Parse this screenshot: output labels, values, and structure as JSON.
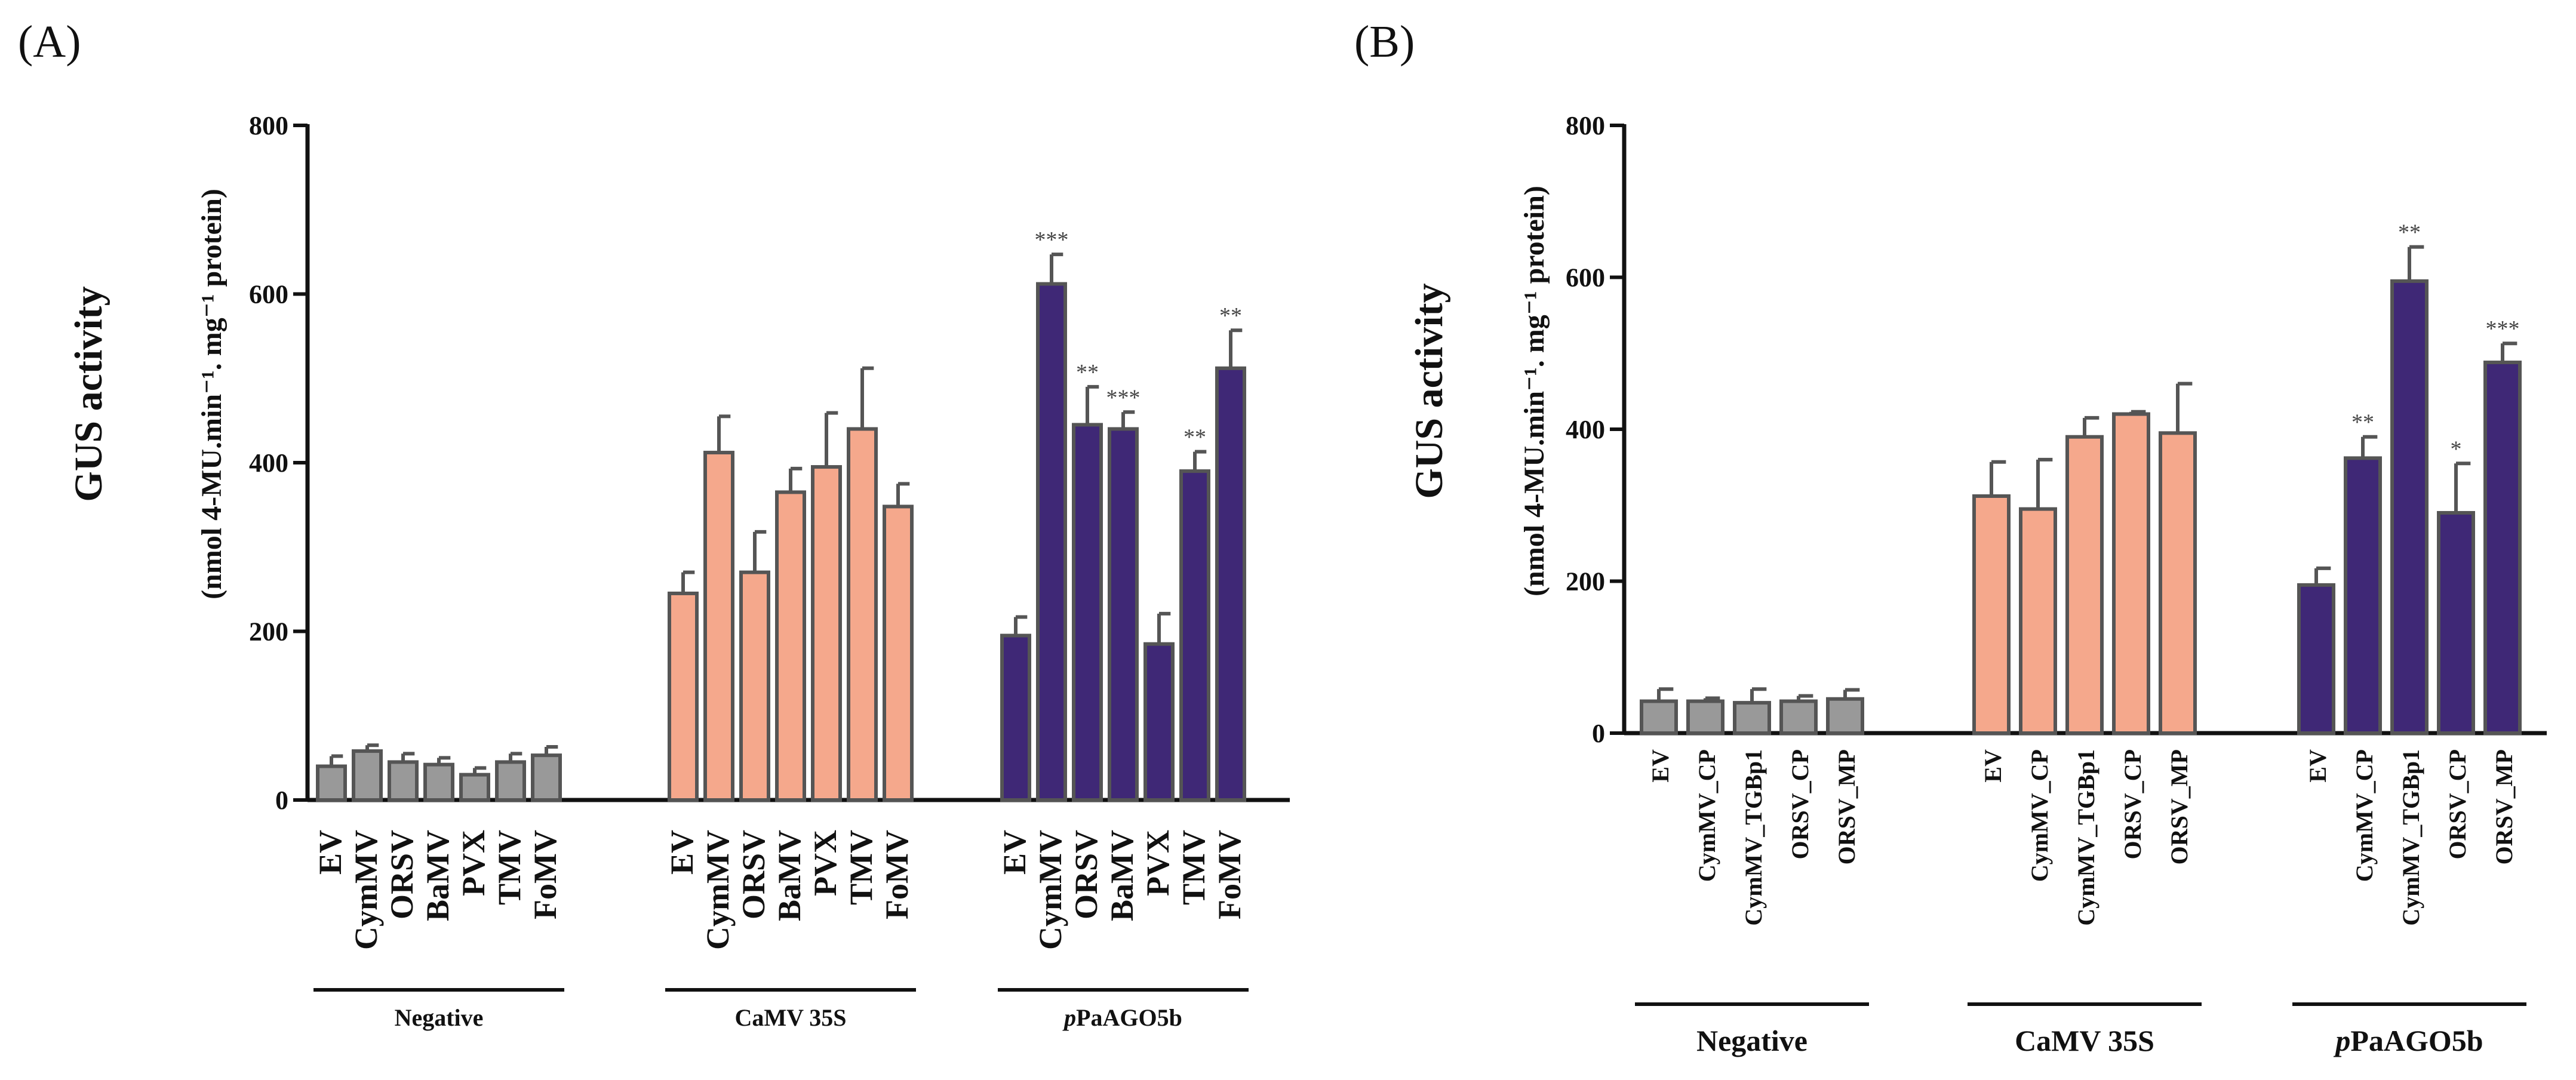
{
  "chart_data": [
    {
      "type": "bar",
      "panel": "(A)",
      "ylabel": "GUS activity",
      "ylabel_units": "(nmol 4-MU.min⁻¹. mg⁻¹ protein)",
      "ylim": [
        0,
        800
      ],
      "yticks": [
        0,
        200,
        400,
        600,
        800
      ],
      "groups": [
        {
          "name": "Negative",
          "color": "#999999",
          "categories": [
            "EV",
            "CymMV",
            "ORSV",
            "BaMV",
            "PVX",
            "TMV",
            "FoMV"
          ],
          "values": [
            40,
            58,
            45,
            42,
            30,
            45,
            53
          ],
          "errors": [
            12,
            7,
            10,
            8,
            8,
            10,
            10
          ],
          "significance": [
            "",
            "",
            "",
            "",
            "",
            "",
            ""
          ]
        },
        {
          "name": "CaMV 35S",
          "color": "#F5A88C",
          "categories": [
            "EV",
            "CymMV",
            "ORSV",
            "BaMV",
            "PVX",
            "TMV",
            "FoMV"
          ],
          "values": [
            245,
            412,
            270,
            365,
            395,
            440,
            348
          ],
          "errors": [
            25,
            43,
            48,
            28,
            64,
            72,
            27
          ],
          "significance": [
            "",
            "",
            "",
            "",
            "",
            "",
            ""
          ]
        },
        {
          "name": "pPaAGO5b",
          "color": "#3F2876",
          "categories": [
            "EV",
            "CymMV",
            "ORSV",
            "BaMV",
            "PVX",
            "TMV",
            "FoMV"
          ],
          "values": [
            195,
            612,
            445,
            440,
            185,
            390,
            512
          ],
          "errors": [
            22,
            35,
            45,
            20,
            36,
            23,
            45
          ],
          "significance": [
            "",
            "***",
            "**",
            "***",
            "",
            "**",
            "**"
          ]
        }
      ]
    },
    {
      "type": "bar",
      "panel": "(B)",
      "ylabel": "GUS activity",
      "ylabel_units": "(nmol 4-MU.min⁻¹. mg⁻¹ protein)",
      "ylim": [
        0,
        800
      ],
      "yticks": [
        0,
        200,
        400,
        600,
        800
      ],
      "groups": [
        {
          "name": "Negative",
          "color": "#999999",
          "categories": [
            "EV",
            "CymMV_CP",
            "CymMV_TGBp1",
            "ORSV_CP",
            "ORSV_MP"
          ],
          "values": [
            42,
            42,
            40,
            42,
            45
          ],
          "errors": [
            16,
            4,
            18,
            7,
            12
          ],
          "significance": [
            "",
            "",
            "",
            "",
            ""
          ]
        },
        {
          "name": "CaMV 35S",
          "color": "#F5A88C",
          "categories": [
            "EV",
            "CymMV_CP",
            "CymMV_TGBp1",
            "ORSV_CP",
            "ORSV_MP"
          ],
          "values": [
            312,
            295,
            390,
            420,
            395
          ],
          "errors": [
            45,
            65,
            25,
            3,
            65
          ],
          "significance": [
            "",
            "",
            "",
            "",
            ""
          ]
        },
        {
          "name": "pPaAGO5b",
          "color": "#3F2876",
          "categories": [
            "EV",
            "CymMV_CP",
            "CymMV_TGBp1",
            "ORSV_CP",
            "ORSV_MP"
          ],
          "values": [
            195,
            362,
            595,
            290,
            488
          ],
          "errors": [
            22,
            28,
            45,
            65,
            25
          ],
          "significance": [
            "",
            "**",
            "**",
            "*",
            "***"
          ]
        }
      ]
    }
  ]
}
